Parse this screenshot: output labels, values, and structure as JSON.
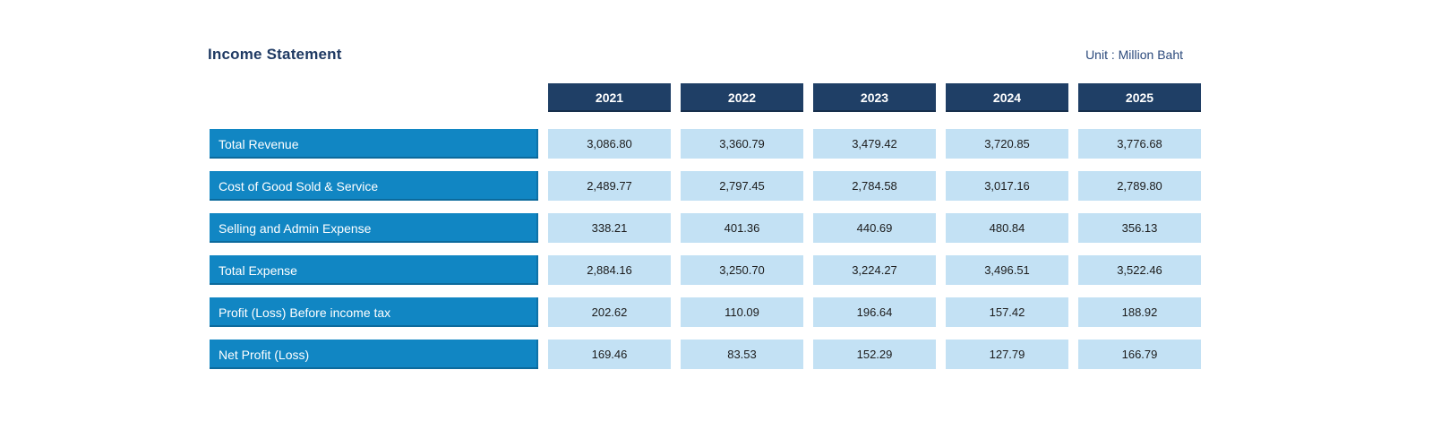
{
  "title": "Income Statement",
  "unit_label": "Unit : Million Baht",
  "colors": {
    "header_bg": "#1f3f66",
    "row_label_bg": "#1186c3",
    "value_cell_bg": "#c3e1f4",
    "title_text": "#1f3a63"
  },
  "chart_data": {
    "type": "table",
    "title": "Income Statement",
    "unit": "Million Baht",
    "columns": [
      "2021",
      "2022",
      "2023",
      "2024",
      "2025"
    ],
    "rows": [
      {
        "label": "Total Revenue",
        "values": [
          "3,086.80",
          "3,360.79",
          "3,479.42",
          "3,720.85",
          "3,776.68"
        ]
      },
      {
        "label": "Cost of Good Sold & Service",
        "values": [
          "2,489.77",
          "2,797.45",
          "2,784.58",
          "3,017.16",
          "2,789.80"
        ]
      },
      {
        "label": "Selling and Admin Expense",
        "values": [
          "338.21",
          "401.36",
          "440.69",
          "480.84",
          "356.13"
        ]
      },
      {
        "label": "Total Expense",
        "values": [
          "2,884.16",
          "3,250.70",
          "3,224.27",
          "3,496.51",
          "3,522.46"
        ]
      },
      {
        "label": "Profit (Loss) Before income tax",
        "values": [
          "202.62",
          "110.09",
          "196.64",
          "157.42",
          "188.92"
        ]
      },
      {
        "label": "Net Profit (Loss)",
        "values": [
          "169.46",
          "83.53",
          "152.29",
          "127.79",
          "166.79"
        ]
      }
    ]
  }
}
